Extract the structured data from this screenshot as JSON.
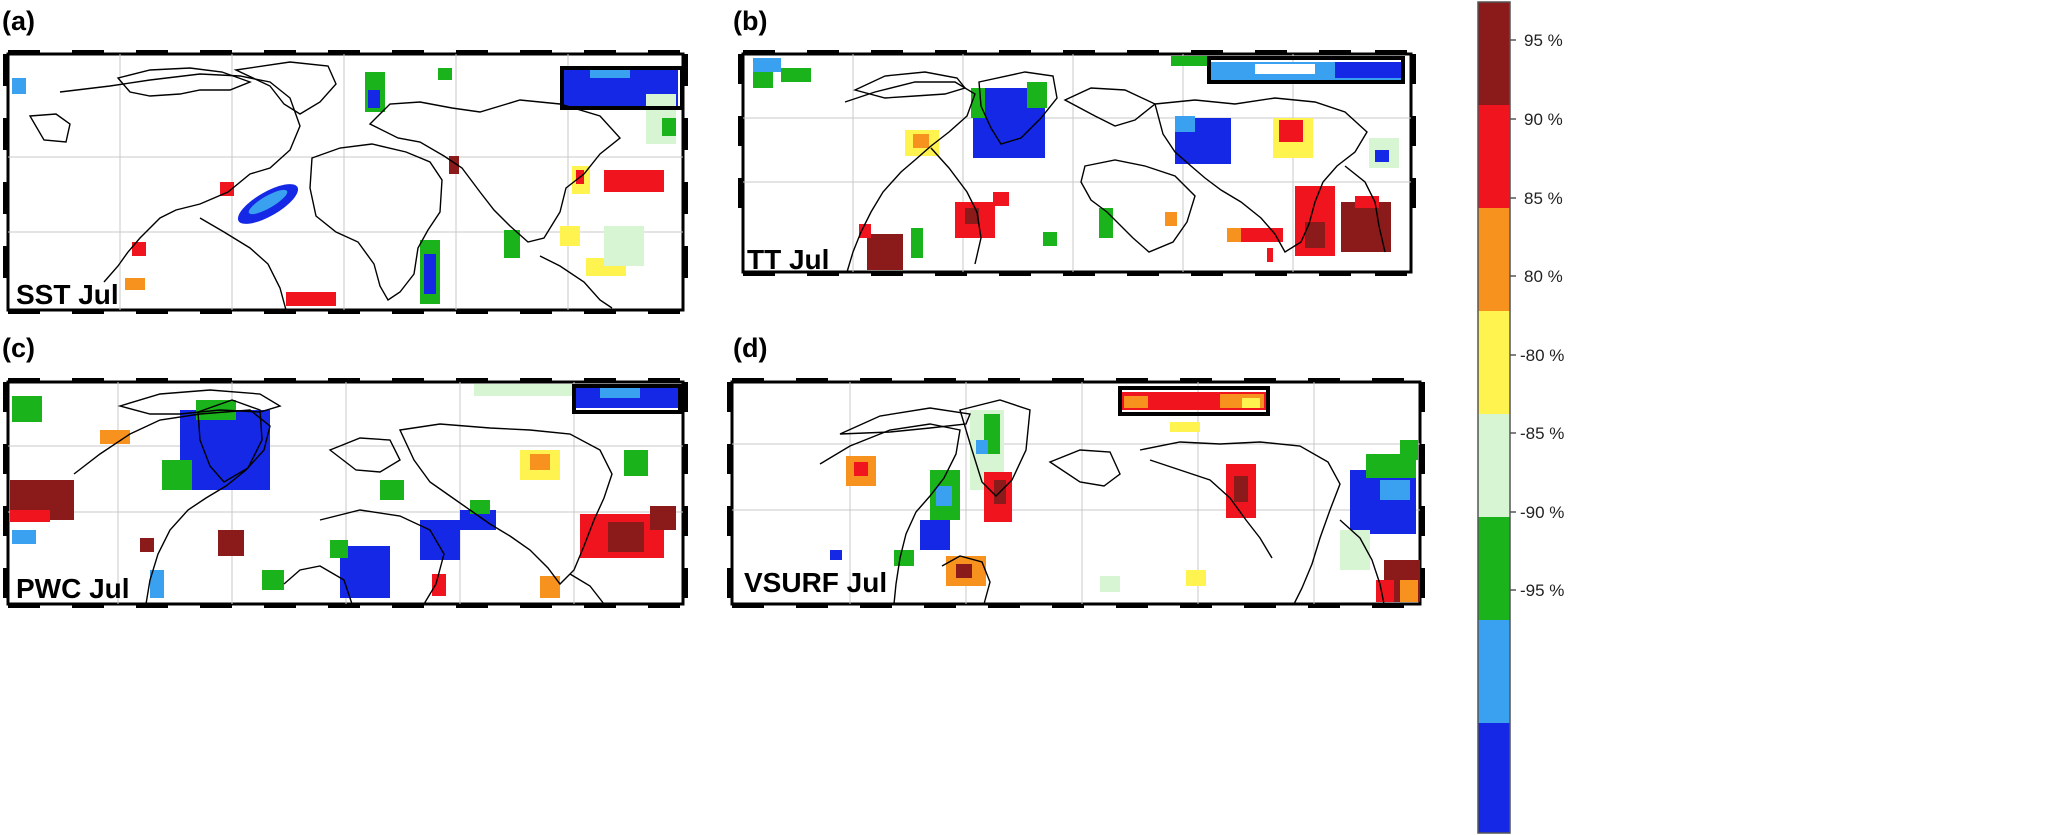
{
  "panels": [
    {
      "id": "a",
      "label": "(a)",
      "title": "SST Jul"
    },
    {
      "id": "b",
      "label": "(b)",
      "title": "TT Jul"
    },
    {
      "id": "c",
      "label": "(c)",
      "title": "PWC Jul"
    },
    {
      "id": "d",
      "label": "(d)",
      "title": "VSURF Jul"
    }
  ],
  "colorbar": {
    "levels": [
      {
        "label": "95 %",
        "color": "#8b1a1a"
      },
      {
        "label": "90 %",
        "color": "#f0141e"
      },
      {
        "label": "85 %",
        "color": "#f7921e"
      },
      {
        "label": "80 %",
        "color": "#fff350"
      },
      {
        "label": "-80 %",
        "color": "#d7f5d2"
      },
      {
        "label": "-85 %",
        "color": "#1bb31b"
      },
      {
        "label": "-90 %",
        "color": "#3aa0f0"
      },
      {
        "label": "-95 %",
        "color": "#1428e6"
      }
    ]
  }
}
